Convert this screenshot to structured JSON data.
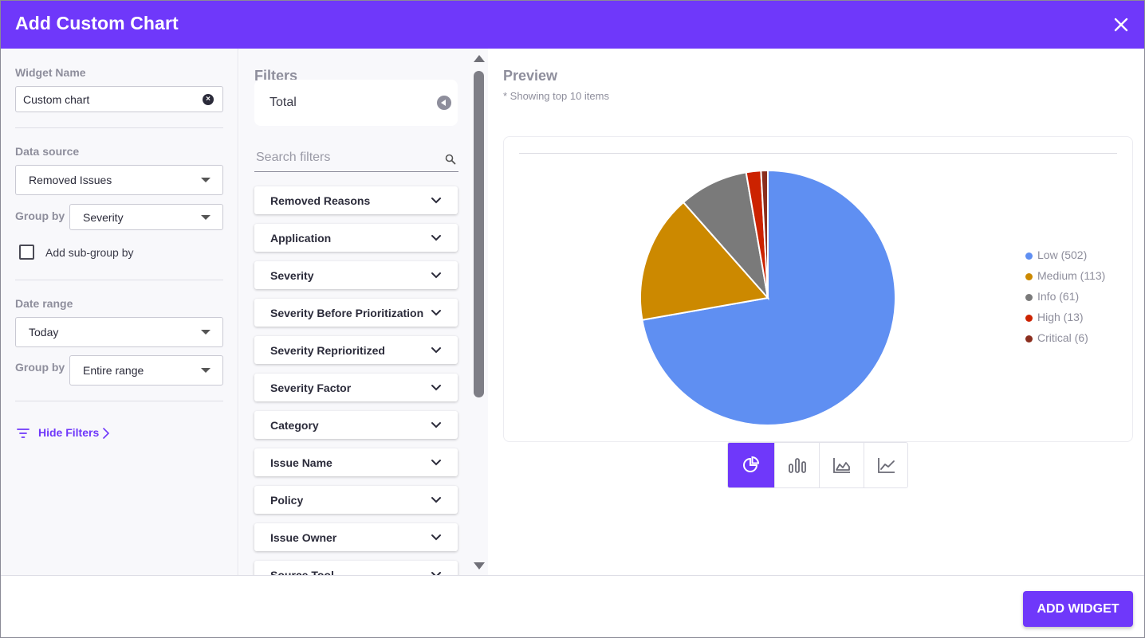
{
  "dialog": {
    "title": "Add Custom Chart",
    "close_icon": "close-icon",
    "accent_color": "#6f38fa"
  },
  "settings": {
    "widget_name_label": "Widget Name",
    "widget_name_value": "Custom chart",
    "data_source_label": "Data source",
    "data_source_value": "Removed Issues",
    "group_by_label": "Group by",
    "group_by_value": "Severity",
    "sub_group_label": "Add sub-group by",
    "sub_group_checked": false,
    "date_range_label": "Date range",
    "date_range_value": "Today",
    "date_group_by_label": "Group by",
    "date_group_by_value": "Entire range",
    "hide_filters_label": "Hide Filters"
  },
  "filters": {
    "heading": "Filters",
    "total_label": "Total",
    "search_placeholder": "Search filters",
    "items": [
      "Removed Reasons",
      "Application",
      "Severity",
      "Severity Before Prioritization",
      "Severity Reprioritized",
      "Severity Factor",
      "Category",
      "Issue Name",
      "Policy",
      "Issue Owner",
      "Source Tool"
    ]
  },
  "preview": {
    "title": "Preview",
    "note": "* Showing top 10 items",
    "chart_types": [
      "pie-chart-icon",
      "bar-chart-icon",
      "area-chart-icon",
      "line-chart-icon"
    ],
    "active_chart_type": "pie-chart-icon"
  },
  "chart_data": {
    "type": "pie",
    "series": [
      {
        "name": "Low",
        "value": 502,
        "label": "Low (502)",
        "color": "#5f8ff2"
      },
      {
        "name": "Medium",
        "value": 113,
        "label": "Medium (113)",
        "color": "#cc8900"
      },
      {
        "name": "Info",
        "value": 61,
        "label": "Info (61)",
        "color": "#7a7a7a"
      },
      {
        "name": "High",
        "value": 13,
        "label": "High (13)",
        "color": "#cc2200"
      },
      {
        "name": "Critical",
        "value": 6,
        "label": "Critical (6)",
        "color": "#8b2e1e"
      }
    ],
    "legend_position": "right"
  },
  "footer": {
    "add_widget_label": "ADD WIDGET"
  }
}
